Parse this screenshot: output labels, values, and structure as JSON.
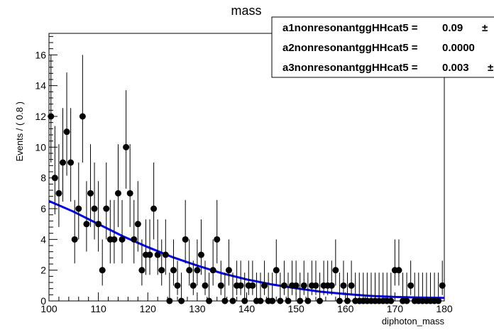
{
  "chart_data": {
    "type": "scatter",
    "title": "mass",
    "xlabel": "diphoton_mass",
    "ylabel": "Events / ( 0.8 )",
    "xlim": [
      100,
      180
    ],
    "ylim": [
      0,
      17.4
    ],
    "xticks": [
      "100",
      "110",
      "120",
      "130",
      "140",
      "150",
      "160",
      "170",
      "180"
    ],
    "yticks": [
      "0",
      "2",
      "4",
      "6",
      "8",
      "10",
      "12",
      "14",
      "16"
    ],
    "series": [
      {
        "kind": "points-with-errors",
        "x": [
          100.4,
          101.2,
          102.0,
          102.8,
          103.6,
          104.4,
          105.2,
          106.0,
          106.8,
          107.6,
          108.4,
          109.2,
          110.0,
          110.8,
          111.6,
          112.4,
          113.2,
          114.0,
          114.8,
          115.6,
          116.4,
          117.2,
          118.0,
          118.8,
          119.6,
          120.4,
          121.2,
          122.0,
          122.8,
          123.6,
          124.4,
          125.2,
          126.0,
          126.8,
          127.6,
          128.4,
          129.2,
          130.0,
          130.8,
          131.6,
          132.4,
          133.2,
          134.0,
          134.8,
          135.6,
          136.4,
          137.2,
          138.0,
          138.8,
          139.6,
          140.4,
          141.2,
          142.0,
          142.8,
          143.6,
          144.4,
          145.2,
          146.0,
          146.8,
          147.6,
          148.4,
          149.2,
          150.0,
          150.8,
          151.6,
          152.4,
          153.2,
          154.0,
          154.8,
          155.6,
          156.4,
          157.2,
          158.0,
          158.8,
          159.6,
          160.4,
          161.2,
          162.0,
          162.8,
          163.6,
          164.4,
          165.2,
          166.0,
          166.8,
          167.6,
          168.4,
          169.2,
          170.0,
          170.8,
          171.6,
          172.4,
          173.2,
          174.0,
          174.8,
          175.6,
          176.4,
          177.2,
          178.0,
          178.8,
          179.6
        ],
        "y": [
          12,
          8,
          7,
          9,
          11,
          9,
          4,
          6,
          12,
          5,
          7,
          6,
          5,
          2,
          6,
          4,
          4,
          7,
          4,
          10,
          7,
          4,
          5,
          2,
          3,
          3,
          6,
          3,
          2,
          3,
          0,
          2,
          1,
          0,
          4,
          2,
          1,
          2,
          3,
          1,
          0,
          2,
          4,
          1,
          0,
          2,
          0,
          1,
          1,
          0,
          1,
          1,
          0,
          0,
          1,
          0,
          0,
          2,
          0,
          1,
          0,
          1,
          1,
          0,
          1,
          0,
          1,
          1,
          0,
          1,
          1,
          1,
          2,
          0,
          1,
          0,
          1,
          0,
          0,
          0,
          0,
          0,
          0,
          0,
          0,
          0,
          0,
          2,
          2,
          0,
          0,
          1,
          0,
          0,
          0,
          0,
          0,
          0,
          0,
          1
        ]
      },
      {
        "kind": "fit-curve",
        "color": "#0000ee",
        "x": [
          100,
          105,
          110,
          115,
          120,
          125,
          130,
          135,
          140,
          145,
          150,
          155,
          160,
          165,
          170,
          175,
          180
        ],
        "y": [
          6.5,
          5.8,
          5.0,
          4.2,
          3.5,
          2.85,
          2.3,
          1.8,
          1.4,
          1.08,
          0.82,
          0.6,
          0.45,
          0.33,
          0.26,
          0.22,
          0.2
        ]
      }
    ],
    "legend": {
      "placement": "top-right",
      "entries": [
        {
          "label": "a1nonresonantggHHcat5 =",
          "value": "0.09",
          "extra": "±"
        },
        {
          "label": "a2nonresonantggHHcat5 =",
          "value": "0.0000",
          "extra": ""
        },
        {
          "label": "a3nonresonantggHHcat5 =",
          "value": "0.003",
          "extra": "±"
        }
      ]
    },
    "colors": {
      "points": "#000000",
      "fit": "#0000ee"
    }
  }
}
